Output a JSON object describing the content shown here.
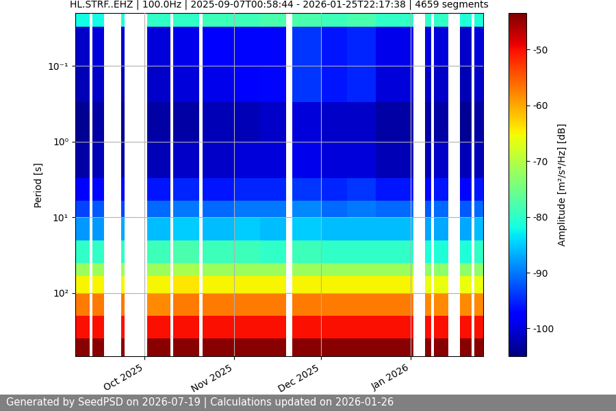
{
  "chart_data": {
    "type": "heatmap",
    "title": "HL.STRF..EHZ | 100.0Hz | 2025-09-07T00:58:44 - 2026-01-25T22:17:38 | 4659 segments",
    "ylabel": "Period [s]",
    "footer": "Generated by SeedPSD on 2026-07-19 | Calculations updated on 2026-01-26",
    "color": "jet",
    "log": "y",
    "grid": true,
    "xlim": [
      "2025-09-07T00:58:44",
      "2026-01-25T22:17:38"
    ],
    "ylim": [
      686,
      0.02
    ],
    "xticks": [
      {
        "value": "2025-10-01",
        "label": "Oct 2025"
      },
      {
        "value": "2025-11-01",
        "label": "Nov 2025"
      },
      {
        "value": "2025-12-01",
        "label": "Dec 2025"
      },
      {
        "value": "2026-01-01",
        "label": "Jan 2026"
      }
    ],
    "yticks": [
      {
        "value": 0.1,
        "label": "10⁻¹"
      },
      {
        "value": 1,
        "label": "10⁰"
      },
      {
        "value": 10,
        "label": "10¹"
      },
      {
        "value": 100,
        "label": "10²"
      }
    ],
    "x_edges": [
      "2025-09-07T00:58:44",
      "2025-09-12",
      "2025-09-13",
      "2025-09-17",
      "2025-09-23",
      "2025-09-24",
      "2025-10-02",
      "2025-10-10",
      "2025-10-11",
      "2025-10-20",
      "2025-10-21",
      "2025-11-01",
      "2025-11-10",
      "2025-11-19",
      "2025-11-21",
      "2025-12-01",
      "2025-12-10",
      "2025-12-20",
      "2026-01-02",
      "2026-01-06",
      "2026-01-08",
      "2026-01-09",
      "2026-01-14",
      "2026-01-18",
      "2026-01-22",
      "2026-01-23",
      "2026-01-25T22:17:38"
    ],
    "y_edges": [
      0.02,
      0.03,
      0.1,
      0.3,
      1,
      3,
      6,
      10,
      20,
      40,
      60,
      100,
      200,
      400,
      686
    ],
    "cells": [
      [
        -82,
        -101,
        -102,
        -104,
        -103,
        -98,
        -93,
        -88,
        -80,
        -72,
        -65,
        -57,
        -50,
        -44
      ],
      null,
      [
        -82,
        -100,
        -101,
        -103,
        -102,
        -97,
        -92,
        -88,
        -80,
        -72,
        -65,
        -57,
        -50,
        -44
      ],
      null,
      [
        -81,
        -101,
        -102,
        -104,
        -103,
        -98,
        -93,
        -87,
        -80,
        -72,
        -65,
        -57,
        -50,
        -44
      ],
      null,
      [
        -80,
        -100,
        -101,
        -103,
        -102,
        -96,
        -91,
        -86,
        -79,
        -72,
        -65,
        -58,
        -50,
        -44
      ],
      null,
      [
        -80,
        -99,
        -100,
        -103,
        -101,
        -95,
        -90,
        -85,
        -78,
        -71,
        -64,
        -57,
        -50,
        -44
      ],
      null,
      [
        -79,
        -98,
        -99,
        -102,
        -101,
        -96,
        -91,
        -86,
        -79,
        -72,
        -65,
        -57,
        -50,
        -44
      ],
      [
        -79,
        -97,
        -98,
        -102,
        -100,
        -95,
        -90,
        -85,
        -79,
        -72,
        -65,
        -57,
        -50,
        -44
      ],
      [
        -78,
        -97,
        -97,
        -101,
        -100,
        -95,
        -90,
        -86,
        -80,
        -72,
        -65,
        -57,
        -50,
        -44
      ],
      null,
      [
        -78,
        -94,
        -94,
        -100,
        -99,
        -94,
        -89,
        -85,
        -79,
        -72,
        -65,
        -57,
        -50,
        -44
      ],
      [
        -79,
        -96,
        -96,
        -101,
        -100,
        -95,
        -91,
        -86,
        -80,
        -72,
        -65,
        -57,
        -50,
        -44
      ],
      [
        -78,
        -95,
        -95,
        -101,
        -100,
        -94,
        -90,
        -86,
        -80,
        -72,
        -65,
        -57,
        -50,
        -44
      ],
      [
        -80,
        -99,
        -100,
        -103,
        -102,
        -96,
        -91,
        -86,
        -80,
        -72,
        -65,
        -57,
        -50,
        -44
      ],
      null,
      [
        -80,
        -100,
        -101,
        -103,
        -102,
        -97,
        -92,
        -87,
        -81,
        -73,
        -66,
        -58,
        -50,
        -44
      ],
      null,
      [
        -80,
        -100,
        -101,
        -103,
        -101,
        -96,
        -91,
        -87,
        -81,
        -73,
        -66,
        -58,
        -50,
        -44
      ],
      null,
      [
        -81,
        -101,
        -102,
        -104,
        -102,
        -97,
        -92,
        -87,
        -81,
        -73,
        -66,
        -58,
        -50,
        -44
      ],
      null,
      [
        -81,
        -100,
        -101,
        -103,
        -102,
        -96,
        -91,
        -86,
        -80,
        -73,
        -66,
        -58,
        -50,
        -44
      ]
    ],
    "colorbar": {
      "label": "Amplitude [m²/s⁴/Hz] [dB]",
      "lim": [
        -105,
        -43.5
      ],
      "ticks": [
        -100,
        -90,
        -80,
        -70,
        -60,
        -50
      ]
    }
  }
}
